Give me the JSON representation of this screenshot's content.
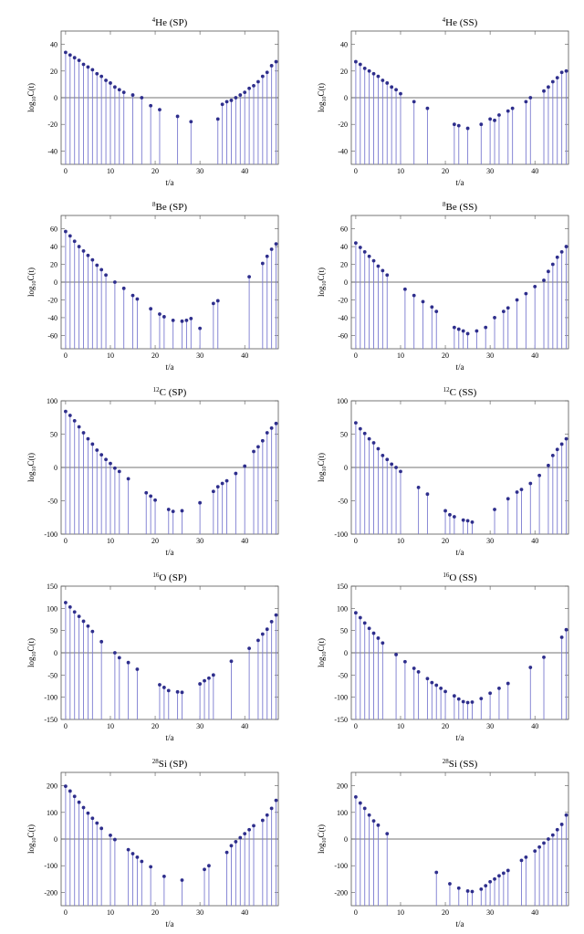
{
  "colors": {
    "stem": "#7b7bd0",
    "marker": "#2e2e8c",
    "frame": "#555555"
  },
  "chart_data": [
    {
      "type": "scatter",
      "title": {
        "sup": "4",
        "main": "He (SP)"
      },
      "xlabel": "t/a",
      "ylabel": {
        "pre": "log",
        "sub": "10",
        "post": "C(t)"
      },
      "xlim": [
        -1,
        47.5
      ],
      "ylim": [
        -50,
        50
      ],
      "xticks": [
        0,
        10,
        20,
        30,
        40
      ],
      "yticks": [
        -40,
        -20,
        0,
        20,
        40
      ],
      "x": [
        0,
        1,
        2,
        3,
        4,
        5,
        6,
        7,
        8,
        9,
        10,
        11,
        12,
        13,
        15,
        17,
        19,
        21,
        25,
        28,
        34,
        35,
        36,
        37,
        38,
        39,
        40,
        41,
        42,
        43,
        44,
        45,
        46,
        47
      ],
      "y": [
        34,
        32,
        30,
        28,
        25,
        23,
        21,
        18,
        16,
        13,
        11,
        8,
        6,
        4,
        2,
        0,
        -6,
        -9,
        -14,
        -18,
        -16,
        -5,
        -3,
        -2,
        0,
        2,
        4,
        7,
        9,
        12,
        16,
        19,
        24,
        27
      ]
    },
    {
      "type": "scatter",
      "title": {
        "sup": "4",
        "main": "He (SS)"
      },
      "xlabel": "t/a",
      "ylabel": {
        "pre": "log",
        "sub": "10",
        "post": "C(t)"
      },
      "xlim": [
        -1,
        47.5
      ],
      "ylim": [
        -50,
        50
      ],
      "xticks": [
        0,
        10,
        20,
        30,
        40
      ],
      "yticks": [
        -40,
        -20,
        0,
        20,
        40
      ],
      "x": [
        0,
        1,
        2,
        3,
        4,
        5,
        6,
        7,
        8,
        9,
        10,
        13,
        16,
        22,
        23,
        25,
        28,
        30,
        31,
        32,
        34,
        35,
        38,
        39,
        42,
        43,
        44,
        45,
        46,
        47
      ],
      "y": [
        27,
        25,
        22,
        20,
        18,
        16,
        13,
        11,
        8,
        6,
        3,
        -3,
        -8,
        -20,
        -21,
        -23,
        -20,
        -16,
        -17,
        -13,
        -10,
        -8,
        -3,
        0,
        5,
        8,
        12,
        15,
        19,
        20
      ]
    },
    {
      "type": "scatter",
      "title": {
        "sup": "8",
        "main": "Be (SP)"
      },
      "xlabel": "t/a",
      "ylabel": {
        "pre": "log",
        "sub": "10",
        "post": "C(t)"
      },
      "xlim": [
        -1,
        47.5
      ],
      "ylim": [
        -75,
        75
      ],
      "xticks": [
        0,
        10,
        20,
        30,
        40
      ],
      "yticks": [
        -60,
        -40,
        -20,
        0,
        20,
        40,
        60
      ],
      "x": [
        0,
        1,
        2,
        3,
        4,
        5,
        6,
        7,
        8,
        9,
        11,
        13,
        15,
        16,
        19,
        21,
        22,
        24,
        26,
        27,
        28,
        30,
        33,
        34,
        41,
        44,
        45,
        46,
        47
      ],
      "y": [
        57,
        52,
        46,
        40,
        35,
        30,
        25,
        19,
        14,
        8,
        0,
        -7,
        -15,
        -19,
        -30,
        -36,
        -39,
        -43,
        -44,
        -43,
        -41,
        -52,
        -24,
        -21,
        6,
        21,
        29,
        37,
        43
      ]
    },
    {
      "type": "scatter",
      "title": {
        "sup": "8",
        "main": "Be (SS)"
      },
      "xlabel": "t/a",
      "ylabel": {
        "pre": "log",
        "sub": "10",
        "post": "C(t)"
      },
      "xlim": [
        -1,
        47.5
      ],
      "ylim": [
        -75,
        75
      ],
      "xticks": [
        0,
        10,
        20,
        30,
        40
      ],
      "yticks": [
        -60,
        -40,
        -20,
        0,
        20,
        40,
        60
      ],
      "x": [
        0,
        1,
        2,
        3,
        4,
        5,
        6,
        7,
        11,
        13,
        15,
        17,
        18,
        22,
        23,
        24,
        25,
        27,
        29,
        31,
        33,
        34,
        36,
        38,
        40,
        42,
        43,
        44,
        45,
        46,
        47
      ],
      "y": [
        44,
        39,
        34,
        29,
        24,
        18,
        13,
        8,
        -8,
        -15,
        -22,
        -28,
        -33,
        -51,
        -53,
        -55,
        -58,
        -55,
        -51,
        -40,
        -33,
        -29,
        -20,
        -13,
        -5,
        2,
        12,
        20,
        28,
        34,
        40
      ]
    },
    {
      "type": "scatter",
      "title": {
        "sup": "12",
        "main": "C (SP)"
      },
      "xlabel": "t/a",
      "ylabel": {
        "pre": "log",
        "sub": "10",
        "post": "C(t)"
      },
      "xlim": [
        -1,
        47.5
      ],
      "ylim": [
        -100,
        100
      ],
      "xticks": [
        0,
        10,
        20,
        30,
        40
      ],
      "yticks": [
        -100,
        -50,
        0,
        50,
        100
      ],
      "x": [
        0,
        1,
        2,
        3,
        4,
        5,
        6,
        7,
        8,
        9,
        10,
        11,
        12,
        14,
        18,
        19,
        20,
        23,
        24,
        26,
        30,
        33,
        34,
        35,
        36,
        38,
        40,
        42,
        43,
        44,
        45,
        46,
        47
      ],
      "y": [
        84,
        78,
        70,
        61,
        52,
        43,
        35,
        26,
        19,
        12,
        6,
        -1,
        -6,
        -17,
        -38,
        -43,
        -49,
        -63,
        -66,
        -65,
        -53,
        -36,
        -29,
        -24,
        -20,
        -9,
        2,
        24,
        31,
        40,
        52,
        59,
        66
      ]
    },
    {
      "type": "scatter",
      "title": {
        "sup": "12",
        "main": "C (SS)"
      },
      "xlabel": "t/a",
      "ylabel": {
        "pre": "log",
        "sub": "10",
        "post": "C(t)"
      },
      "xlim": [
        -1,
        47.5
      ],
      "ylim": [
        -100,
        100
      ],
      "xticks": [
        0,
        10,
        20,
        30,
        40
      ],
      "yticks": [
        -100,
        -50,
        0,
        50,
        100
      ],
      "x": [
        0,
        1,
        2,
        3,
        4,
        5,
        6,
        7,
        8,
        9,
        10,
        14,
        16,
        20,
        21,
        22,
        24,
        25,
        26,
        31,
        34,
        36,
        37,
        39,
        41,
        43,
        44,
        45,
        46,
        47
      ],
      "y": [
        67,
        58,
        51,
        43,
        37,
        28,
        18,
        12,
        5,
        0,
        -6,
        -30,
        -40,
        -65,
        -71,
        -74,
        -79,
        -80,
        -82,
        -63,
        -47,
        -37,
        -33,
        -24,
        -12,
        3,
        18,
        27,
        35,
        43
      ]
    },
    {
      "type": "scatter",
      "title": {
        "sup": "16",
        "main": "O (SP)"
      },
      "xlabel": "t/a",
      "ylabel": {
        "pre": "log",
        "sub": "10",
        "post": "C(t)"
      },
      "xlim": [
        -1,
        47.5
      ],
      "ylim": [
        -150,
        150
      ],
      "xticks": [
        0,
        10,
        20,
        30,
        40
      ],
      "yticks": [
        -150,
        -100,
        -50,
        0,
        50,
        100,
        150
      ],
      "x": [
        0,
        1,
        2,
        3,
        4,
        5,
        6,
        8,
        11,
        12,
        14,
        16,
        21,
        22,
        23,
        25,
        26,
        30,
        31,
        32,
        33,
        37,
        41,
        43,
        44,
        45,
        46,
        47
      ],
      "y": [
        113,
        103,
        92,
        82,
        71,
        60,
        48,
        25,
        0,
        -11,
        -22,
        -37,
        -72,
        -78,
        -85,
        -88,
        -89,
        -70,
        -63,
        -57,
        -50,
        -19,
        10,
        28,
        42,
        53,
        70,
        85
      ]
    },
    {
      "type": "scatter",
      "title": {
        "sup": "16",
        "main": "O (SS)"
      },
      "xlabel": "t/a",
      "ylabel": {
        "pre": "log",
        "sub": "10",
        "post": "C(t)"
      },
      "xlim": [
        -1,
        47.5
      ],
      "ylim": [
        -150,
        150
      ],
      "xticks": [
        0,
        10,
        20,
        30,
        40
      ],
      "yticks": [
        -150,
        -100,
        -50,
        0,
        50,
        100,
        150
      ],
      "x": [
        0,
        1,
        2,
        3,
        4,
        5,
        6,
        9,
        11,
        13,
        14,
        16,
        17,
        18,
        19,
        20,
        22,
        23,
        24,
        25,
        26,
        28,
        30,
        32,
        34,
        39,
        42,
        46,
        47
      ],
      "y": [
        90,
        79,
        67,
        55,
        44,
        33,
        22,
        -4,
        -20,
        -35,
        -43,
        -58,
        -67,
        -73,
        -80,
        -87,
        -97,
        -104,
        -110,
        -112,
        -111,
        -103,
        -91,
        -80,
        -69,
        -33,
        -10,
        35,
        52
      ]
    },
    {
      "type": "scatter",
      "title": {
        "sup": "28",
        "main": "Si (SP)"
      },
      "xlabel": "t/a",
      "ylabel": {
        "pre": "log",
        "sub": "10",
        "post": "C(t)"
      },
      "xlim": [
        -1,
        47.5
      ],
      "ylim": [
        -250,
        250
      ],
      "xticks": [
        0,
        10,
        20,
        30,
        40
      ],
      "yticks": [
        -200,
        -100,
        0,
        100,
        200
      ],
      "x": [
        0,
        1,
        2,
        3,
        4,
        5,
        6,
        7,
        8,
        10,
        11,
        14,
        15,
        16,
        17,
        19,
        22,
        26,
        31,
        32,
        36,
        37,
        38,
        39,
        40,
        41,
        42,
        44,
        45,
        46,
        47
      ],
      "y": [
        198,
        180,
        160,
        138,
        118,
        97,
        78,
        60,
        40,
        14,
        -2,
        -40,
        -55,
        -68,
        -84,
        -104,
        -140,
        -154,
        -114,
        -100,
        -50,
        -25,
        -10,
        5,
        20,
        35,
        50,
        70,
        90,
        115,
        145
      ]
    },
    {
      "type": "scatter",
      "title": {
        "sup": "28",
        "main": "Si (SS)"
      },
      "xlabel": "t/a",
      "ylabel": {
        "pre": "log",
        "sub": "10",
        "post": "C(t)"
      },
      "xlim": [
        -1,
        47.5
      ],
      "ylim": [
        -250,
        250
      ],
      "xticks": [
        0,
        10,
        20,
        30,
        40
      ],
      "yticks": [
        -200,
        -100,
        0,
        100,
        200
      ],
      "x": [
        0,
        1,
        2,
        3,
        4,
        5,
        7,
        18,
        21,
        23,
        25,
        26,
        28,
        29,
        30,
        31,
        32,
        33,
        34,
        37,
        38,
        40,
        41,
        42,
        43,
        44,
        45,
        46,
        47
      ],
      "y": [
        158,
        135,
        115,
        90,
        68,
        52,
        20,
        -125,
        -168,
        -184,
        -195,
        -197,
        -188,
        -175,
        -160,
        -150,
        -138,
        -128,
        -118,
        -80,
        -68,
        -45,
        -30,
        -15,
        0,
        15,
        35,
        55,
        90
      ]
    }
  ]
}
